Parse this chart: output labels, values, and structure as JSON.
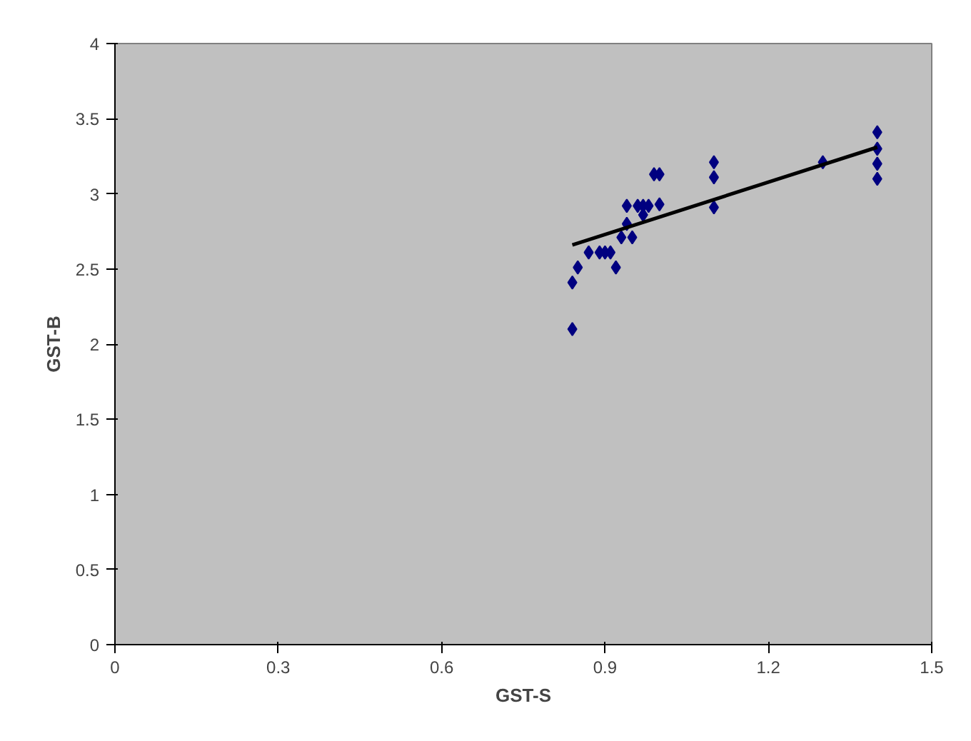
{
  "chart_data": {
    "type": "scatter",
    "xlabel": "GST-S",
    "ylabel": "GST-B",
    "xlim": [
      0,
      1.5
    ],
    "ylim": [
      0,
      4
    ],
    "xticks": [
      0,
      0.3,
      0.6,
      0.9,
      1.2,
      1.5
    ],
    "yticks": [
      0,
      0.5,
      1,
      1.5,
      2,
      2.5,
      3,
      3.5,
      4
    ],
    "grid": false,
    "marker": "diamond",
    "series": [
      {
        "color": "#000080",
        "x": [
          0.84,
          0.84,
          0.85,
          0.87,
          0.89,
          0.9,
          0.91,
          0.92,
          0.93,
          0.95,
          0.94,
          0.94,
          0.96,
          0.97,
          0.98,
          1.0,
          0.97,
          0.99,
          1.0,
          1.1,
          1.1,
          1.1,
          1.3,
          1.4,
          1.4,
          1.4,
          1.4
        ],
        "values": [
          2.1,
          2.41,
          2.51,
          2.61,
          2.61,
          2.61,
          2.61,
          2.51,
          2.71,
          2.71,
          2.8,
          2.92,
          2.92,
          2.92,
          2.92,
          2.93,
          2.86,
          3.13,
          3.13,
          3.21,
          3.11,
          2.91,
          3.21,
          3.41,
          3.3,
          3.2,
          3.1
        ]
      },
      {
        "type": "line",
        "marker": "none",
        "color": "#000000",
        "x": [
          0.84,
          1.4
        ],
        "values": [
          2.66,
          3.31
        ]
      }
    ]
  }
}
